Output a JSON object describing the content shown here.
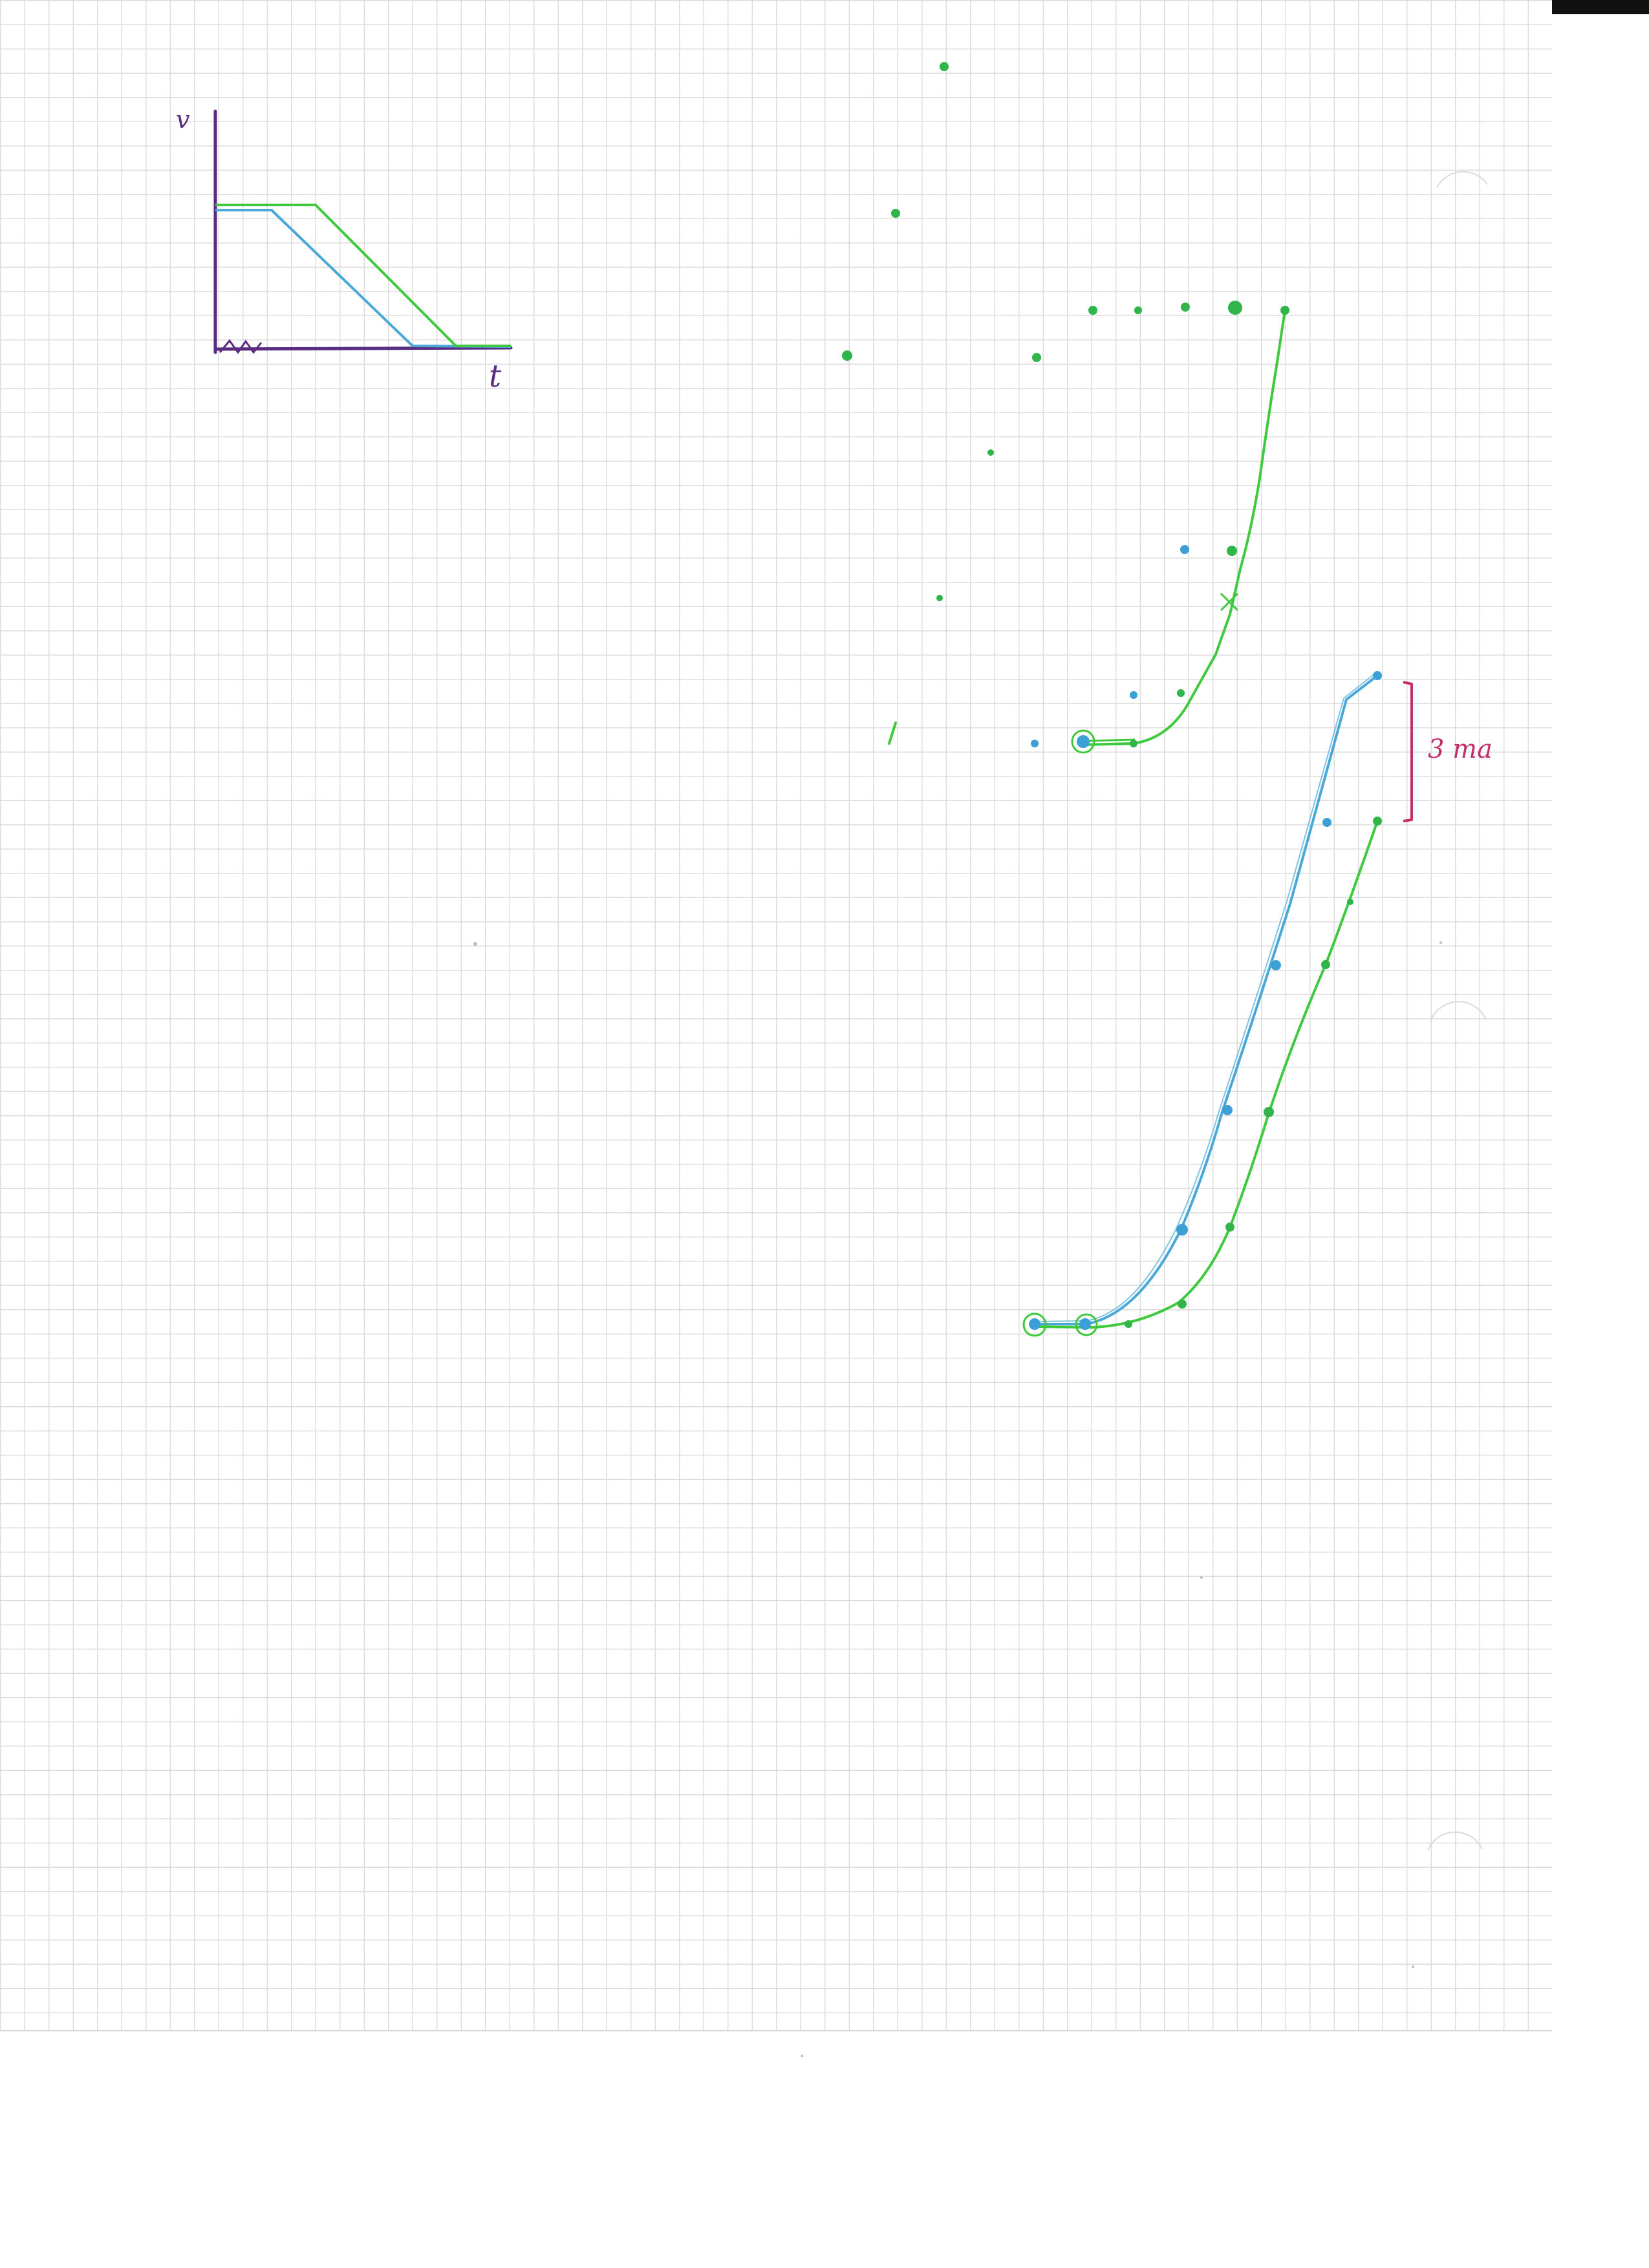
{
  "sketch_graph": {
    "y_axis_label": "v",
    "x_axis_label": "t"
  },
  "bracket_annotation": {
    "label": "3 ma"
  },
  "ink_colors": {
    "green": "#3ec93e",
    "blue": "#4aa8d8",
    "purple": "#5a2d82",
    "magenta": "#c42e6a"
  }
}
